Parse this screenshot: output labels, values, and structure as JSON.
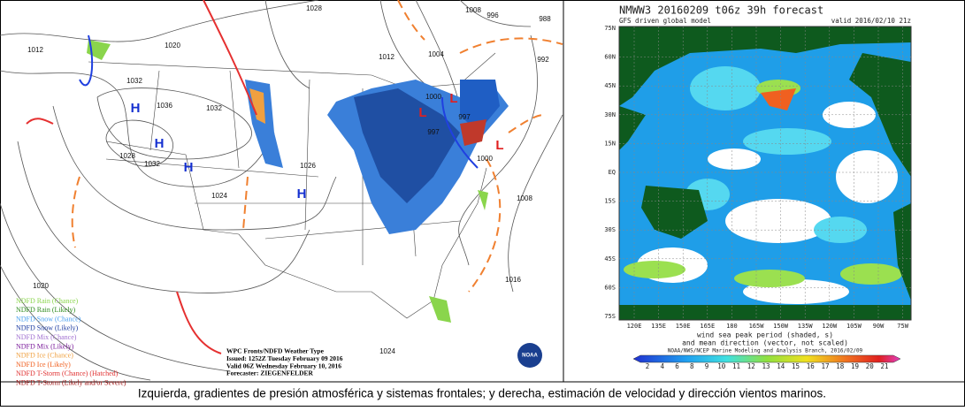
{
  "left_map": {
    "pressure_labels": [
      "1012",
      "1020",
      "1028",
      "1008",
      "996",
      "988",
      "1032",
      "1036",
      "1032",
      "1012",
      "1004",
      "992",
      "1000",
      "997",
      "997",
      "1028",
      "1032",
      "1026",
      "1000",
      "1024",
      "1008",
      "1020",
      "1016",
      "1024"
    ],
    "highs": [
      "H",
      "H",
      "H",
      "H"
    ],
    "lows": [
      "L",
      "L",
      "L"
    ],
    "legend": [
      "NDFD Rain (Chance)",
      "NDFD Rain (Likely)",
      "NDFD Snow (Chance)",
      "NDFD Snow (Likely)",
      "NDFD Mix (Chance)",
      "NDFD Mix (Likely)",
      "NDFD Ice (Chance)",
      "NDFD Ice (Likely)",
      "NDFD T-Storm (Chance) (Hatched)",
      "NDFD T-Storm (Likely and/or Severe)"
    ],
    "info": [
      "WPC Fronts/NDFD Weather Type",
      "Issued: 1252Z Tuesday February 09 2016",
      "Valid 06Z Wednesday February 10, 2016",
      "Forecaster: ZIEGENFELDER"
    ],
    "logo": "NOAA"
  },
  "right_map": {
    "title": "NMWW3 20160209 t06z   39h forecast",
    "model": "GFS driven global model",
    "valid": "valid 2016/02/10 21z",
    "lat_labels": [
      "75N",
      "60N",
      "45N",
      "30N",
      "15N",
      "EQ",
      "15S",
      "30S",
      "45S",
      "60S",
      "75S"
    ],
    "lon_labels": [
      "120E",
      "135E",
      "150E",
      "165E",
      "180",
      "165W",
      "150W",
      "135W",
      "120W",
      "105W",
      "90W",
      "75W"
    ],
    "description": [
      "wind sea peak period (shaded, s)",
      "and mean direction (vector, not scaled)"
    ],
    "credit": "NOAA/NWS/NCEP Marine Modeling and Analysis Branch, 2016/02/09",
    "colorbar_labels": [
      2,
      4,
      6,
      8,
      9,
      10,
      11,
      12,
      13,
      14,
      15,
      16,
      17,
      18,
      19,
      20,
      21
    ]
  },
  "caption": "Izquierda, gradientes de presión atmosférica y sistemas frontales; y derecha, estimación de velocidad y dirección vientos marinos."
}
